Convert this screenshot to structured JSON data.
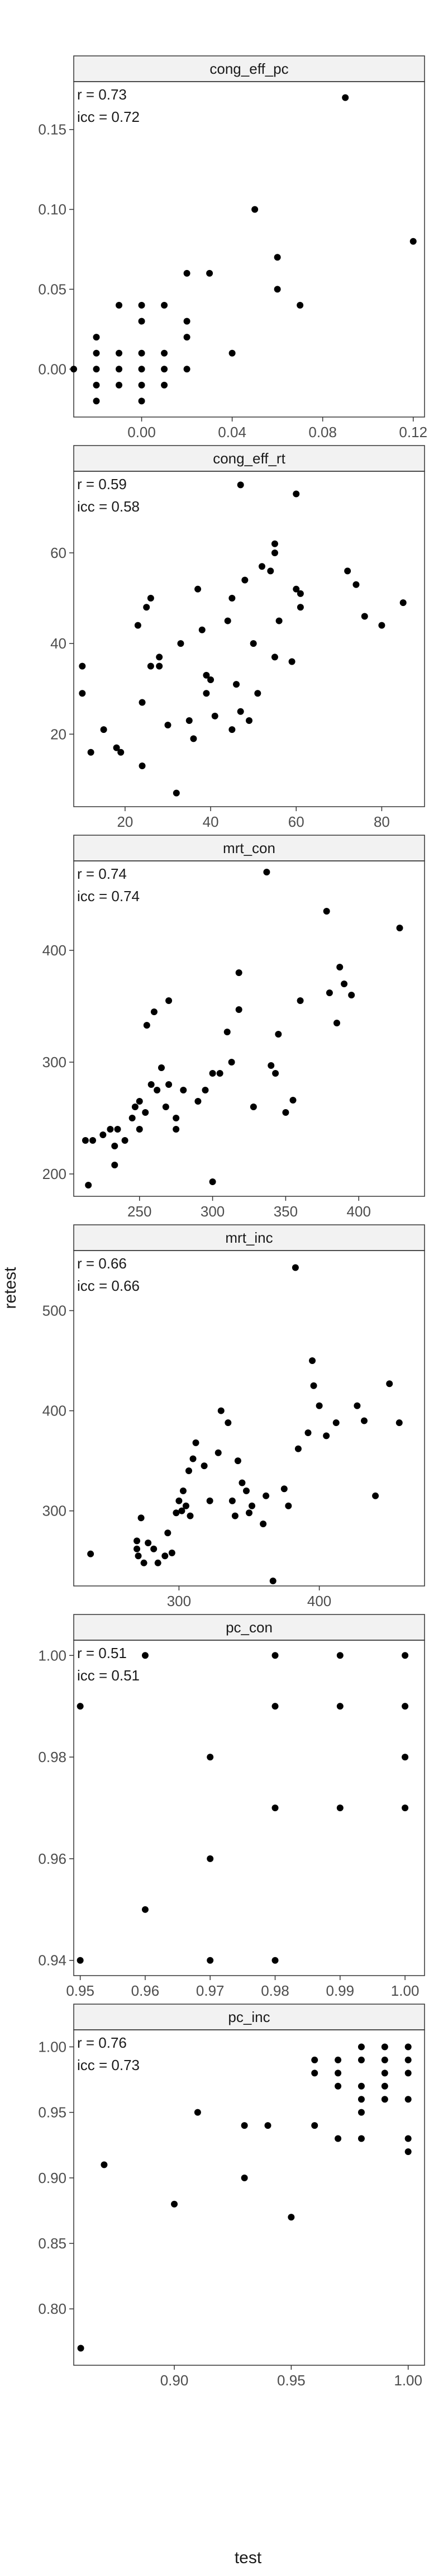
{
  "figure": {
    "xlabel": "test",
    "ylabel": "retest"
  },
  "chart_data": [
    {
      "type": "scatter",
      "title": "cong_eff_pc",
      "stats": [
        "r = 0.73",
        "icc = 0.72"
      ],
      "xlim": [
        -0.03,
        0.125
      ],
      "ylim": [
        -0.03,
        0.18
      ],
      "xticks": [
        0.0,
        0.04,
        0.08,
        0.12
      ],
      "xtick_labels": [
        "0.00",
        "0.04",
        "0.08",
        "0.12"
      ],
      "yticks": [
        0.0,
        0.05,
        0.1,
        0.15
      ],
      "ytick_labels": [
        "0.00",
        "0.05",
        "0.10",
        "0.15"
      ],
      "points": [
        [
          -0.03,
          0.0
        ],
        [
          -0.02,
          0.02
        ],
        [
          -0.02,
          0.01
        ],
        [
          -0.02,
          0.0
        ],
        [
          -0.02,
          -0.01
        ],
        [
          -0.02,
          -0.02
        ],
        [
          -0.01,
          0.04
        ],
        [
          -0.01,
          0.01
        ],
        [
          -0.01,
          0.0
        ],
        [
          -0.01,
          -0.01
        ],
        [
          0.0,
          0.04
        ],
        [
          0.0,
          0.03
        ],
        [
          0.0,
          0.01
        ],
        [
          0.0,
          0.0
        ],
        [
          0.0,
          -0.01
        ],
        [
          0.0,
          -0.02
        ],
        [
          0.01,
          0.04
        ],
        [
          0.01,
          0.01
        ],
        [
          0.01,
          0.0
        ],
        [
          0.01,
          -0.01
        ],
        [
          0.02,
          0.06
        ],
        [
          0.02,
          0.03
        ],
        [
          0.02,
          0.02
        ],
        [
          0.02,
          0.0
        ],
        [
          0.03,
          0.06
        ],
        [
          0.04,
          0.01
        ],
        [
          0.05,
          0.1
        ],
        [
          0.06,
          0.07
        ],
        [
          0.06,
          0.05
        ],
        [
          0.07,
          0.04
        ],
        [
          0.09,
          0.17
        ],
        [
          0.12,
          0.08
        ]
      ]
    },
    {
      "type": "scatter",
      "title": "cong_eff_rt",
      "stats": [
        "r = 0.59",
        "icc = 0.58"
      ],
      "xlim": [
        8,
        90
      ],
      "ylim": [
        4,
        78
      ],
      "xticks": [
        20,
        40,
        60,
        80
      ],
      "xtick_labels": [
        "20",
        "40",
        "60",
        "80"
      ],
      "yticks": [
        20,
        40,
        60
      ],
      "ytick_labels": [
        "20",
        "40",
        "60"
      ],
      "points": [
        [
          10,
          35
        ],
        [
          10,
          29
        ],
        [
          12,
          16
        ],
        [
          15,
          21
        ],
        [
          18,
          17
        ],
        [
          19,
          16
        ],
        [
          23,
          44
        ],
        [
          24,
          13
        ],
        [
          24,
          27
        ],
        [
          25,
          48
        ],
        [
          26,
          35
        ],
        [
          26,
          50
        ],
        [
          28,
          37
        ],
        [
          28,
          35
        ],
        [
          30,
          22
        ],
        [
          32,
          7
        ],
        [
          33,
          40
        ],
        [
          35,
          23
        ],
        [
          36,
          19
        ],
        [
          37,
          52
        ],
        [
          38,
          43
        ],
        [
          39,
          29
        ],
        [
          39,
          33
        ],
        [
          40,
          32
        ],
        [
          41,
          24
        ],
        [
          44,
          45
        ],
        [
          45,
          21
        ],
        [
          45,
          50
        ],
        [
          46,
          31
        ],
        [
          47,
          25
        ],
        [
          47,
          75
        ],
        [
          48,
          54
        ],
        [
          49,
          23
        ],
        [
          50,
          40
        ],
        [
          51,
          29
        ],
        [
          52,
          57
        ],
        [
          54,
          56
        ],
        [
          55,
          37
        ],
        [
          55,
          60
        ],
        [
          55,
          62
        ],
        [
          56,
          45
        ],
        [
          59,
          36
        ],
        [
          60,
          73
        ],
        [
          60,
          52
        ],
        [
          61,
          48
        ],
        [
          61,
          51
        ],
        [
          72,
          56
        ],
        [
          74,
          53
        ],
        [
          76,
          46
        ],
        [
          80,
          44
        ],
        [
          85,
          49
        ]
      ]
    },
    {
      "type": "scatter",
      "title": "mrt_con",
      "stats": [
        "r = 0.74",
        "icc = 0.74"
      ],
      "xlim": [
        205,
        445
      ],
      "ylim": [
        180,
        480
      ],
      "xticks": [
        250,
        300,
        350,
        400
      ],
      "xtick_labels": [
        "250",
        "300",
        "350",
        "400"
      ],
      "yticks": [
        200,
        300,
        400
      ],
      "ytick_labels": [
        "200",
        "300",
        "400"
      ],
      "points": [
        [
          213,
          230
        ],
        [
          215,
          190
        ],
        [
          218,
          230
        ],
        [
          225,
          235
        ],
        [
          230,
          240
        ],
        [
          233,
          225
        ],
        [
          233,
          208
        ],
        [
          235,
          240
        ],
        [
          240,
          230
        ],
        [
          245,
          250
        ],
        [
          247,
          260
        ],
        [
          250,
          265
        ],
        [
          250,
          240
        ],
        [
          254,
          255
        ],
        [
          255,
          333
        ],
        [
          258,
          280
        ],
        [
          260,
          345
        ],
        [
          262,
          275
        ],
        [
          265,
          295
        ],
        [
          268,
          260
        ],
        [
          270,
          355
        ],
        [
          270,
          280
        ],
        [
          275,
          250
        ],
        [
          275,
          240
        ],
        [
          280,
          275
        ],
        [
          290,
          265
        ],
        [
          295,
          275
        ],
        [
          300,
          193
        ],
        [
          305,
          290
        ],
        [
          310,
          327
        ],
        [
          313,
          300
        ],
        [
          318,
          380
        ],
        [
          318,
          347
        ],
        [
          328,
          260
        ],
        [
          337,
          470
        ],
        [
          340,
          297
        ],
        [
          343,
          290
        ],
        [
          350,
          255
        ],
        [
          355,
          266
        ],
        [
          360,
          355
        ],
        [
          378,
          435
        ],
        [
          380,
          362
        ],
        [
          385,
          335
        ],
        [
          387,
          385
        ],
        [
          390,
          370
        ],
        [
          395,
          360
        ],
        [
          428,
          420
        ],
        [
          300,
          290
        ],
        [
          345,
          325
        ]
      ]
    },
    {
      "type": "scatter",
      "title": "mrt_inc",
      "stats": [
        "r = 0.66",
        "icc = 0.66"
      ],
      "xlim": [
        225,
        475
      ],
      "ylim": [
        225,
        560
      ],
      "xticks": [
        300,
        400
      ],
      "xtick_labels": [
        "300",
        "400"
      ],
      "yticks": [
        300,
        400,
        500
      ],
      "ytick_labels": [
        "300",
        "400",
        "500"
      ],
      "points": [
        [
          237,
          257
        ],
        [
          270,
          262
        ],
        [
          270,
          270
        ],
        [
          271,
          255
        ],
        [
          273,
          293
        ],
        [
          275,
          248
        ],
        [
          278,
          268
        ],
        [
          282,
          262
        ],
        [
          285,
          248
        ],
        [
          290,
          255
        ],
        [
          292,
          278
        ],
        [
          295,
          258
        ],
        [
          298,
          298
        ],
        [
          300,
          310
        ],
        [
          302,
          300
        ],
        [
          303,
          320
        ],
        [
          305,
          305
        ],
        [
          307,
          340
        ],
        [
          308,
          295
        ],
        [
          310,
          352
        ],
        [
          312,
          368
        ],
        [
          318,
          345
        ],
        [
          322,
          310
        ],
        [
          328,
          358
        ],
        [
          330,
          400
        ],
        [
          335,
          388
        ],
        [
          338,
          310
        ],
        [
          340,
          295
        ],
        [
          342,
          350
        ],
        [
          345,
          328
        ],
        [
          348,
          320
        ],
        [
          350,
          298
        ],
        [
          352,
          305
        ],
        [
          360,
          287
        ],
        [
          362,
          315
        ],
        [
          367,
          230
        ],
        [
          378,
          305
        ],
        [
          383,
          543
        ],
        [
          385,
          362
        ],
        [
          392,
          378
        ],
        [
          395,
          450
        ],
        [
          396,
          425
        ],
        [
          400,
          405
        ],
        [
          405,
          375
        ],
        [
          412,
          388
        ],
        [
          427,
          405
        ],
        [
          432,
          390
        ],
        [
          440,
          315
        ],
        [
          450,
          427
        ],
        [
          457,
          388
        ],
        [
          375,
          322
        ]
      ]
    },
    {
      "type": "scatter",
      "title": "pc_con",
      "stats": [
        "r = 0.51",
        "icc = 0.51"
      ],
      "xlim": [
        0.949,
        1.003
      ],
      "ylim": [
        0.937,
        1.003
      ],
      "xticks": [
        0.95,
        0.96,
        0.97,
        0.98,
        0.99,
        1.0
      ],
      "xtick_labels": [
        "0.95",
        "0.96",
        "0.97",
        "0.98",
        "0.99",
        "1.00"
      ],
      "yticks": [
        0.94,
        0.96,
        0.98,
        1.0
      ],
      "ytick_labels": [
        "0.94",
        "0.96",
        "0.98",
        "1.00"
      ],
      "points": [
        [
          0.95,
          0.99
        ],
        [
          0.95,
          0.94
        ],
        [
          0.96,
          1.0
        ],
        [
          0.96,
          0.95
        ],
        [
          0.97,
          0.98
        ],
        [
          0.97,
          0.96
        ],
        [
          0.97,
          0.94
        ],
        [
          0.98,
          1.0
        ],
        [
          0.98,
          0.99
        ],
        [
          0.98,
          0.97
        ],
        [
          0.98,
          0.94
        ],
        [
          0.99,
          1.0
        ],
        [
          0.99,
          0.99
        ],
        [
          0.99,
          0.97
        ],
        [
          1.0,
          1.0
        ],
        [
          1.0,
          0.99
        ],
        [
          1.0,
          0.98
        ],
        [
          1.0,
          0.97
        ]
      ]
    },
    {
      "type": "scatter",
      "title": "pc_inc",
      "stats": [
        "r = 0.76",
        "icc = 0.73"
      ],
      "xlim": [
        0.857,
        1.007
      ],
      "ylim": [
        0.757,
        1.013
      ],
      "xticks": [
        0.9,
        0.95,
        1.0
      ],
      "xtick_labels": [
        "0.90",
        "0.95",
        "1.00"
      ],
      "yticks": [
        0.8,
        0.85,
        0.9,
        0.95,
        1.0
      ],
      "ytick_labels": [
        "0.80",
        "0.85",
        "0.90",
        "0.95",
        "1.00"
      ],
      "points": [
        [
          0.86,
          0.77
        ],
        [
          0.87,
          0.91
        ],
        [
          0.9,
          0.88
        ],
        [
          0.91,
          0.95
        ],
        [
          0.93,
          0.94
        ],
        [
          0.93,
          0.9
        ],
        [
          0.94,
          0.94
        ],
        [
          0.95,
          0.87
        ],
        [
          0.96,
          0.99
        ],
        [
          0.96,
          0.98
        ],
        [
          0.96,
          0.94
        ],
        [
          0.97,
          0.99
        ],
        [
          0.97,
          0.98
        ],
        [
          0.97,
          0.97
        ],
        [
          0.97,
          0.93
        ],
        [
          0.98,
          1.0
        ],
        [
          0.98,
          0.99
        ],
        [
          0.98,
          0.97
        ],
        [
          0.98,
          0.96
        ],
        [
          0.98,
          0.95
        ],
        [
          0.98,
          0.93
        ],
        [
          0.99,
          1.0
        ],
        [
          0.99,
          0.99
        ],
        [
          0.99,
          0.98
        ],
        [
          0.99,
          0.97
        ],
        [
          0.99,
          0.96
        ],
        [
          1.0,
          1.0
        ],
        [
          1.0,
          0.99
        ],
        [
          1.0,
          0.98
        ],
        [
          1.0,
          0.96
        ],
        [
          1.0,
          0.93
        ],
        [
          1.0,
          0.92
        ]
      ]
    }
  ]
}
